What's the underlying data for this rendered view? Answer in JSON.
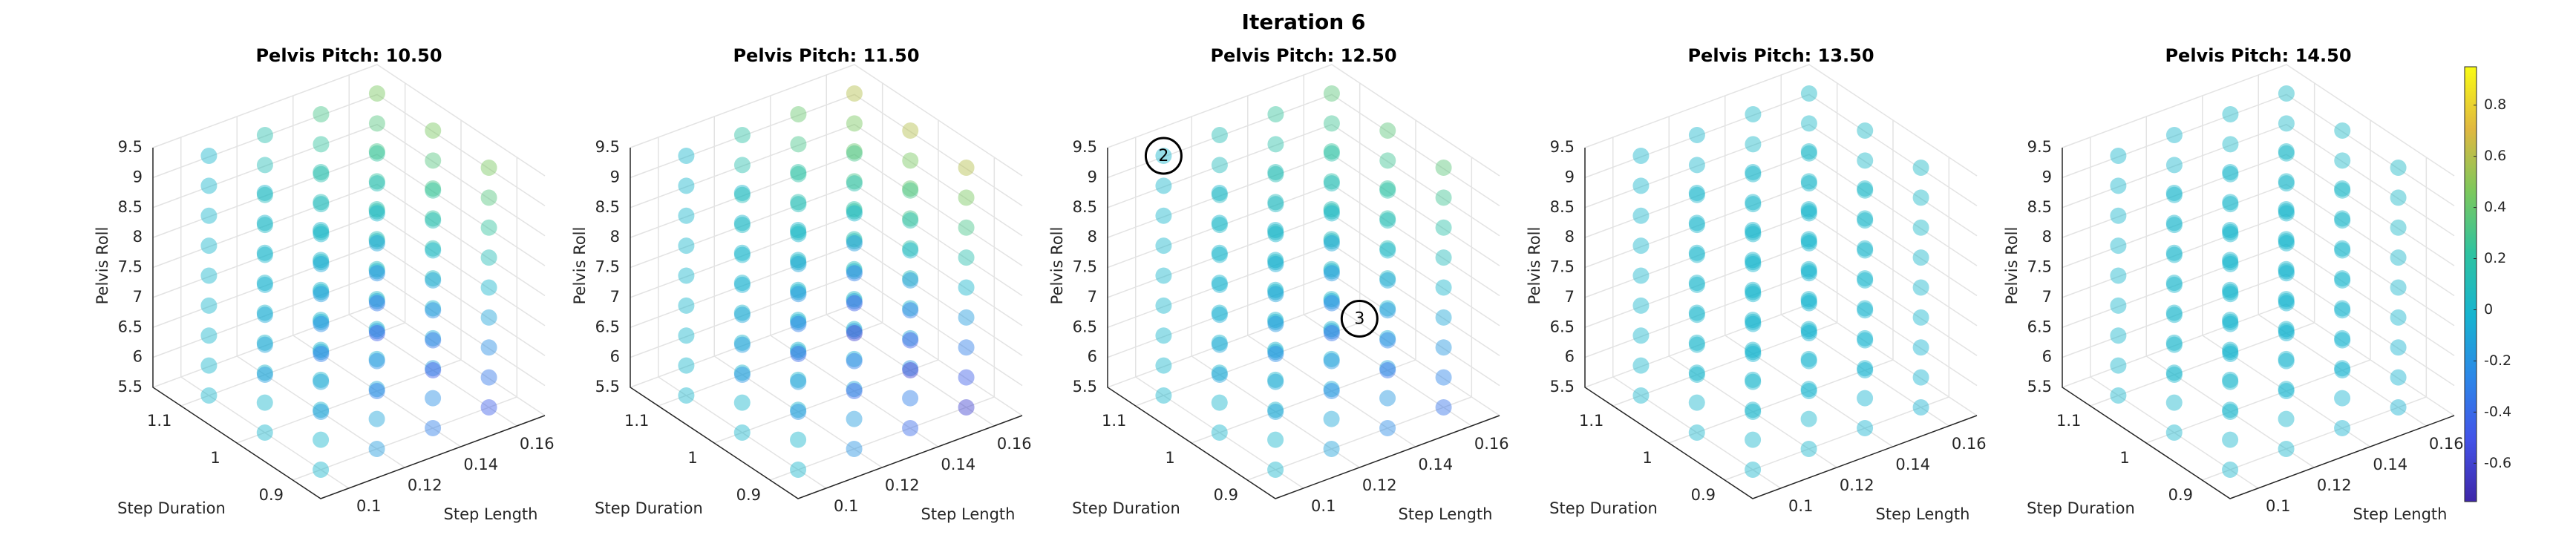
{
  "figure": {
    "title": "Iteration 6",
    "clim": [
      -0.75,
      0.95
    ],
    "cticks": [
      -0.6,
      -0.4,
      -0.2,
      0,
      0.2,
      0.4,
      0.6,
      0.8
    ],
    "colormap": [
      "#3e26a8",
      "#4353e8",
      "#2c87e8",
      "#16b4d0",
      "#2ec3a0",
      "#7dc85c",
      "#e0b840",
      "#f9fb15"
    ]
  },
  "chart_data": [
    {
      "type": "scatter3d",
      "title": "Pelvis Pitch: 10.50",
      "xlabel": "Step Length",
      "ylabel": "Step Duration",
      "zlabel": "Pelvis Roll",
      "x": [
        0.1,
        0.12,
        0.14,
        0.16
      ],
      "y": [
        0.9,
        1,
        1.1
      ],
      "z": [
        5.5,
        6,
        6.5,
        7,
        7.5,
        8,
        8.5,
        9,
        9.5
      ],
      "xlim": [
        0.09,
        0.17
      ],
      "ylim": [
        0.85,
        1.15
      ],
      "zlim": [
        5.5,
        9.5
      ],
      "xticks": [
        0.1,
        0.12,
        0.14,
        0.16
      ],
      "yticks": [
        0.9,
        1,
        1.1
      ],
      "zticks": [
        5.5,
        6,
        6.5,
        7,
        7.5,
        8,
        8.5,
        9,
        9.5
      ],
      "values": [
        [
          [
            0,
            0,
            0,
            0,
            0,
            0,
            0,
            0,
            0
          ],
          [
            0,
            0,
            0,
            0,
            0,
            0,
            0,
            0,
            0
          ],
          [
            0,
            0,
            0,
            0,
            0,
            0,
            0,
            0,
            0
          ]
        ],
        [
          [
            -0.15,
            -0.11,
            -0.08,
            -0.04,
            0,
            0.04,
            0.08,
            0.11,
            0.15
          ],
          [
            -0.15,
            -0.11,
            -0.08,
            -0.04,
            0,
            0.04,
            0.08,
            0.11,
            0.15
          ],
          [
            -0.15,
            -0.11,
            -0.08,
            -0.04,
            0,
            0.04,
            0.08,
            0.11,
            0.15
          ]
        ],
        [
          [
            -0.3,
            -0.23,
            -0.15,
            -0.08,
            0,
            0.08,
            0.15,
            0.23,
            0.3
          ],
          [
            -0.3,
            -0.23,
            -0.15,
            -0.08,
            0,
            0.08,
            0.15,
            0.23,
            0.3
          ],
          [
            -0.3,
            -0.23,
            -0.15,
            -0.08,
            0,
            0.08,
            0.15,
            0.23,
            0.3
          ]
        ],
        [
          [
            -0.45,
            -0.34,
            -0.23,
            -0.11,
            0,
            0.11,
            0.23,
            0.34,
            0.45
          ],
          [
            -0.45,
            -0.34,
            -0.23,
            -0.11,
            0,
            0.11,
            0.23,
            0.34,
            0.45
          ],
          [
            -0.45,
            -0.34,
            -0.23,
            -0.11,
            0,
            0.11,
            0.23,
            0.34,
            0.45
          ]
        ]
      ]
    },
    {
      "type": "scatter3d",
      "title": "Pelvis Pitch: 11.50",
      "xlabel": "Step Length",
      "ylabel": "Step Duration",
      "zlabel": "Pelvis Roll",
      "x": [
        0.1,
        0.12,
        0.14,
        0.16
      ],
      "y": [
        0.9,
        1,
        1.1
      ],
      "z": [
        5.5,
        6,
        6.5,
        7,
        7.5,
        8,
        8.5,
        9,
        9.5
      ],
      "xlim": [
        0.09,
        0.17
      ],
      "ylim": [
        0.85,
        1.15
      ],
      "zlim": [
        5.5,
        9.5
      ],
      "xticks": [
        0.1,
        0.12,
        0.14,
        0.16
      ],
      "yticks": [
        0.9,
        1,
        1.1
      ],
      "zticks": [
        5.5,
        6,
        6.5,
        7,
        7.5,
        8,
        8.5,
        9,
        9.5
      ],
      "values": [
        [
          [
            0,
            0,
            0,
            0,
            0,
            0,
            0,
            0,
            0
          ],
          [
            0,
            0,
            0,
            0,
            0,
            0,
            0,
            0,
            0
          ],
          [
            0,
            0,
            0,
            0,
            0,
            0,
            0,
            0,
            0
          ]
        ],
        [
          [
            -0.2,
            -0.15,
            -0.1,
            -0.05,
            0,
            0.05,
            0.1,
            0.15,
            0.2
          ],
          [
            -0.2,
            -0.15,
            -0.1,
            -0.05,
            0,
            0.05,
            0.1,
            0.15,
            0.2
          ],
          [
            -0.2,
            -0.15,
            -0.1,
            -0.05,
            0,
            0.05,
            0.1,
            0.15,
            0.2
          ]
        ],
        [
          [
            -0.4,
            -0.3,
            -0.2,
            -0.1,
            0,
            0.1,
            0.2,
            0.3,
            0.4
          ],
          [
            -0.4,
            -0.3,
            -0.2,
            -0.1,
            0,
            0.1,
            0.2,
            0.3,
            0.4
          ],
          [
            -0.4,
            -0.3,
            -0.2,
            -0.1,
            0,
            0.1,
            0.2,
            0.3,
            0.4
          ]
        ],
        [
          [
            -0.6,
            -0.45,
            -0.3,
            -0.15,
            0,
            0.15,
            0.3,
            0.45,
            0.6
          ],
          [
            -0.6,
            -0.45,
            -0.3,
            -0.15,
            0,
            0.15,
            0.3,
            0.45,
            0.6
          ],
          [
            -0.6,
            -0.45,
            -0.3,
            -0.15,
            0,
            0.15,
            0.3,
            0.45,
            0.6
          ]
        ]
      ]
    },
    {
      "type": "scatter3d",
      "title": "Pelvis Pitch: 12.50",
      "xlabel": "Step Length",
      "ylabel": "Step Duration",
      "zlabel": "Pelvis Roll",
      "x": [
        0.1,
        0.12,
        0.14,
        0.16
      ],
      "y": [
        0.9,
        1,
        1.1
      ],
      "z": [
        5.5,
        6,
        6.5,
        7,
        7.5,
        8,
        8.5,
        9,
        9.5
      ],
      "xlim": [
        0.09,
        0.17
      ],
      "ylim": [
        0.85,
        1.15
      ],
      "zlim": [
        5.5,
        9.5
      ],
      "xticks": [
        0.1,
        0.12,
        0.14,
        0.16
      ],
      "yticks": [
        0.9,
        1,
        1.1
      ],
      "zticks": [
        5.5,
        6,
        6.5,
        7,
        7.5,
        8,
        8.5,
        9,
        9.5
      ],
      "annotations": [
        {
          "text": "2",
          "x": 0.1,
          "y": 1.1,
          "z": 9.5
        },
        {
          "text": "3",
          "x": 0.13,
          "y": 0.9,
          "z": 7.5
        }
      ],
      "values": [
        [
          [
            0,
            0,
            0,
            0,
            0,
            0,
            0,
            0,
            0
          ],
          [
            0,
            0,
            0,
            0,
            0,
            0,
            0,
            0,
            0
          ],
          [
            0,
            0,
            0,
            0,
            0,
            0,
            0,
            0,
            0
          ]
        ],
        [
          [
            -0.12,
            -0.09,
            -0.06,
            -0.03,
            0,
            0.03,
            0.06,
            0.09,
            0.12
          ],
          [
            -0.12,
            -0.09,
            -0.06,
            -0.03,
            0,
            0.03,
            0.06,
            0.09,
            0.12
          ],
          [
            -0.12,
            -0.09,
            -0.06,
            -0.03,
            0,
            0.03,
            0.06,
            0.09,
            0.12
          ]
        ],
        [
          [
            -0.24,
            -0.18,
            -0.12,
            -0.06,
            0,
            0.06,
            0.12,
            0.18,
            0.24
          ],
          [
            -0.24,
            -0.18,
            -0.12,
            -0.06,
            0,
            0.06,
            0.12,
            0.18,
            0.24
          ],
          [
            -0.24,
            -0.18,
            -0.12,
            -0.06,
            0,
            0.06,
            0.12,
            0.18,
            0.24
          ]
        ],
        [
          [
            -0.36,
            -0.27,
            -0.18,
            -0.09,
            0,
            0.09,
            0.18,
            0.27,
            0.36
          ],
          [
            -0.36,
            -0.27,
            -0.18,
            -0.09,
            0,
            0.09,
            0.18,
            0.27,
            0.36
          ],
          [
            -0.36,
            -0.27,
            -0.18,
            -0.09,
            0,
            0.09,
            0.18,
            0.27,
            0.36
          ]
        ]
      ]
    },
    {
      "type": "scatter3d",
      "title": "Pelvis Pitch: 13.50",
      "xlabel": "Step Length",
      "ylabel": "Step Duration",
      "zlabel": "Pelvis Roll",
      "x": [
        0.1,
        0.12,
        0.14,
        0.16
      ],
      "y": [
        0.9,
        1,
        1.1
      ],
      "z": [
        5.5,
        6,
        6.5,
        7,
        7.5,
        8,
        8.5,
        9,
        9.5
      ],
      "xlim": [
        0.09,
        0.17
      ],
      "ylim": [
        0.85,
        1.15
      ],
      "zlim": [
        5.5,
        9.5
      ],
      "xticks": [
        0.1,
        0.12,
        0.14,
        0.16
      ],
      "yticks": [
        0.9,
        1,
        1.1
      ],
      "zticks": [
        5.5,
        6,
        6.5,
        7,
        7.5,
        8,
        8.5,
        9,
        9.5
      ],
      "values": [
        [
          [
            0,
            0,
            0,
            0,
            0,
            0,
            0,
            0,
            0
          ],
          [
            0,
            0,
            0,
            0,
            0,
            0,
            0,
            0,
            0
          ],
          [
            0,
            0,
            0,
            0,
            0,
            0,
            0,
            0,
            0
          ]
        ],
        [
          [
            0,
            0,
            0,
            0,
            0,
            0,
            0,
            0,
            0
          ],
          [
            0,
            0,
            0,
            0,
            0,
            0,
            0,
            0,
            0
          ],
          [
            0,
            0,
            0,
            0,
            0,
            0,
            0,
            0,
            0
          ]
        ],
        [
          [
            -0.02,
            -0.02,
            -0.01,
            -0.01,
            0,
            0.01,
            0.01,
            0.02,
            0.02
          ],
          [
            -0.02,
            -0.02,
            -0.01,
            -0.01,
            0,
            0.01,
            0.01,
            0.02,
            0.02
          ],
          [
            -0.02,
            -0.02,
            -0.01,
            -0.01,
            0,
            0.01,
            0.01,
            0.02,
            0.02
          ]
        ],
        [
          [
            -0.03,
            -0.02,
            -0.02,
            -0.01,
            0,
            0.01,
            0.02,
            0.02,
            0.03
          ],
          [
            -0.03,
            -0.02,
            -0.02,
            -0.01,
            0,
            0.01,
            0.02,
            0.02,
            0.03
          ],
          [
            -0.03,
            -0.02,
            -0.02,
            -0.01,
            0,
            0.01,
            0.02,
            0.02,
            0.03
          ]
        ]
      ]
    },
    {
      "type": "scatter3d",
      "title": "Pelvis Pitch: 14.50",
      "xlabel": "Step Length",
      "ylabel": "Step Duration",
      "zlabel": "Pelvis Roll",
      "x": [
        0.1,
        0.12,
        0.14,
        0.16
      ],
      "y": [
        0.9,
        1,
        1.1
      ],
      "z": [
        5.5,
        6,
        6.5,
        7,
        7.5,
        8,
        8.5,
        9,
        9.5
      ],
      "xlim": [
        0.09,
        0.17
      ],
      "ylim": [
        0.85,
        1.15
      ],
      "zlim": [
        5.5,
        9.5
      ],
      "xticks": [
        0.1,
        0.12,
        0.14,
        0.16
      ],
      "yticks": [
        0.9,
        1,
        1.1
      ],
      "zticks": [
        5.5,
        6,
        6.5,
        7,
        7.5,
        8,
        8.5,
        9,
        9.5
      ],
      "values": [
        [
          [
            0,
            0,
            0,
            0,
            0,
            0,
            0,
            0,
            0
          ],
          [
            0,
            0,
            0,
            0,
            0,
            0,
            0,
            0,
            0
          ],
          [
            0,
            0,
            0,
            0,
            0,
            0,
            0,
            0,
            0
          ]
        ],
        [
          [
            0,
            0,
            0,
            0,
            0,
            0,
            0,
            0,
            0
          ],
          [
            0,
            0,
            0,
            0,
            0,
            0,
            0,
            0,
            0
          ],
          [
            0,
            0,
            0,
            0,
            0,
            0,
            0,
            0,
            0
          ]
        ],
        [
          [
            -0.02,
            -0.02,
            -0.01,
            -0.01,
            0,
            0.01,
            0.01,
            0.02,
            0.02
          ],
          [
            -0.02,
            -0.02,
            -0.01,
            -0.01,
            0,
            0.01,
            0.01,
            0.02,
            0.02
          ],
          [
            -0.02,
            -0.02,
            -0.01,
            -0.01,
            0,
            0.01,
            0.01,
            0.02,
            0.02
          ]
        ],
        [
          [
            -0.03,
            -0.02,
            -0.02,
            -0.01,
            0,
            0.01,
            0.02,
            0.02,
            0.03
          ],
          [
            -0.03,
            -0.02,
            -0.02,
            -0.01,
            0,
            0.01,
            0.02,
            0.02,
            0.03
          ],
          [
            -0.03,
            -0.02,
            -0.02,
            -0.01,
            0,
            0.01,
            0.02,
            0.02,
            0.03
          ]
        ]
      ]
    }
  ]
}
